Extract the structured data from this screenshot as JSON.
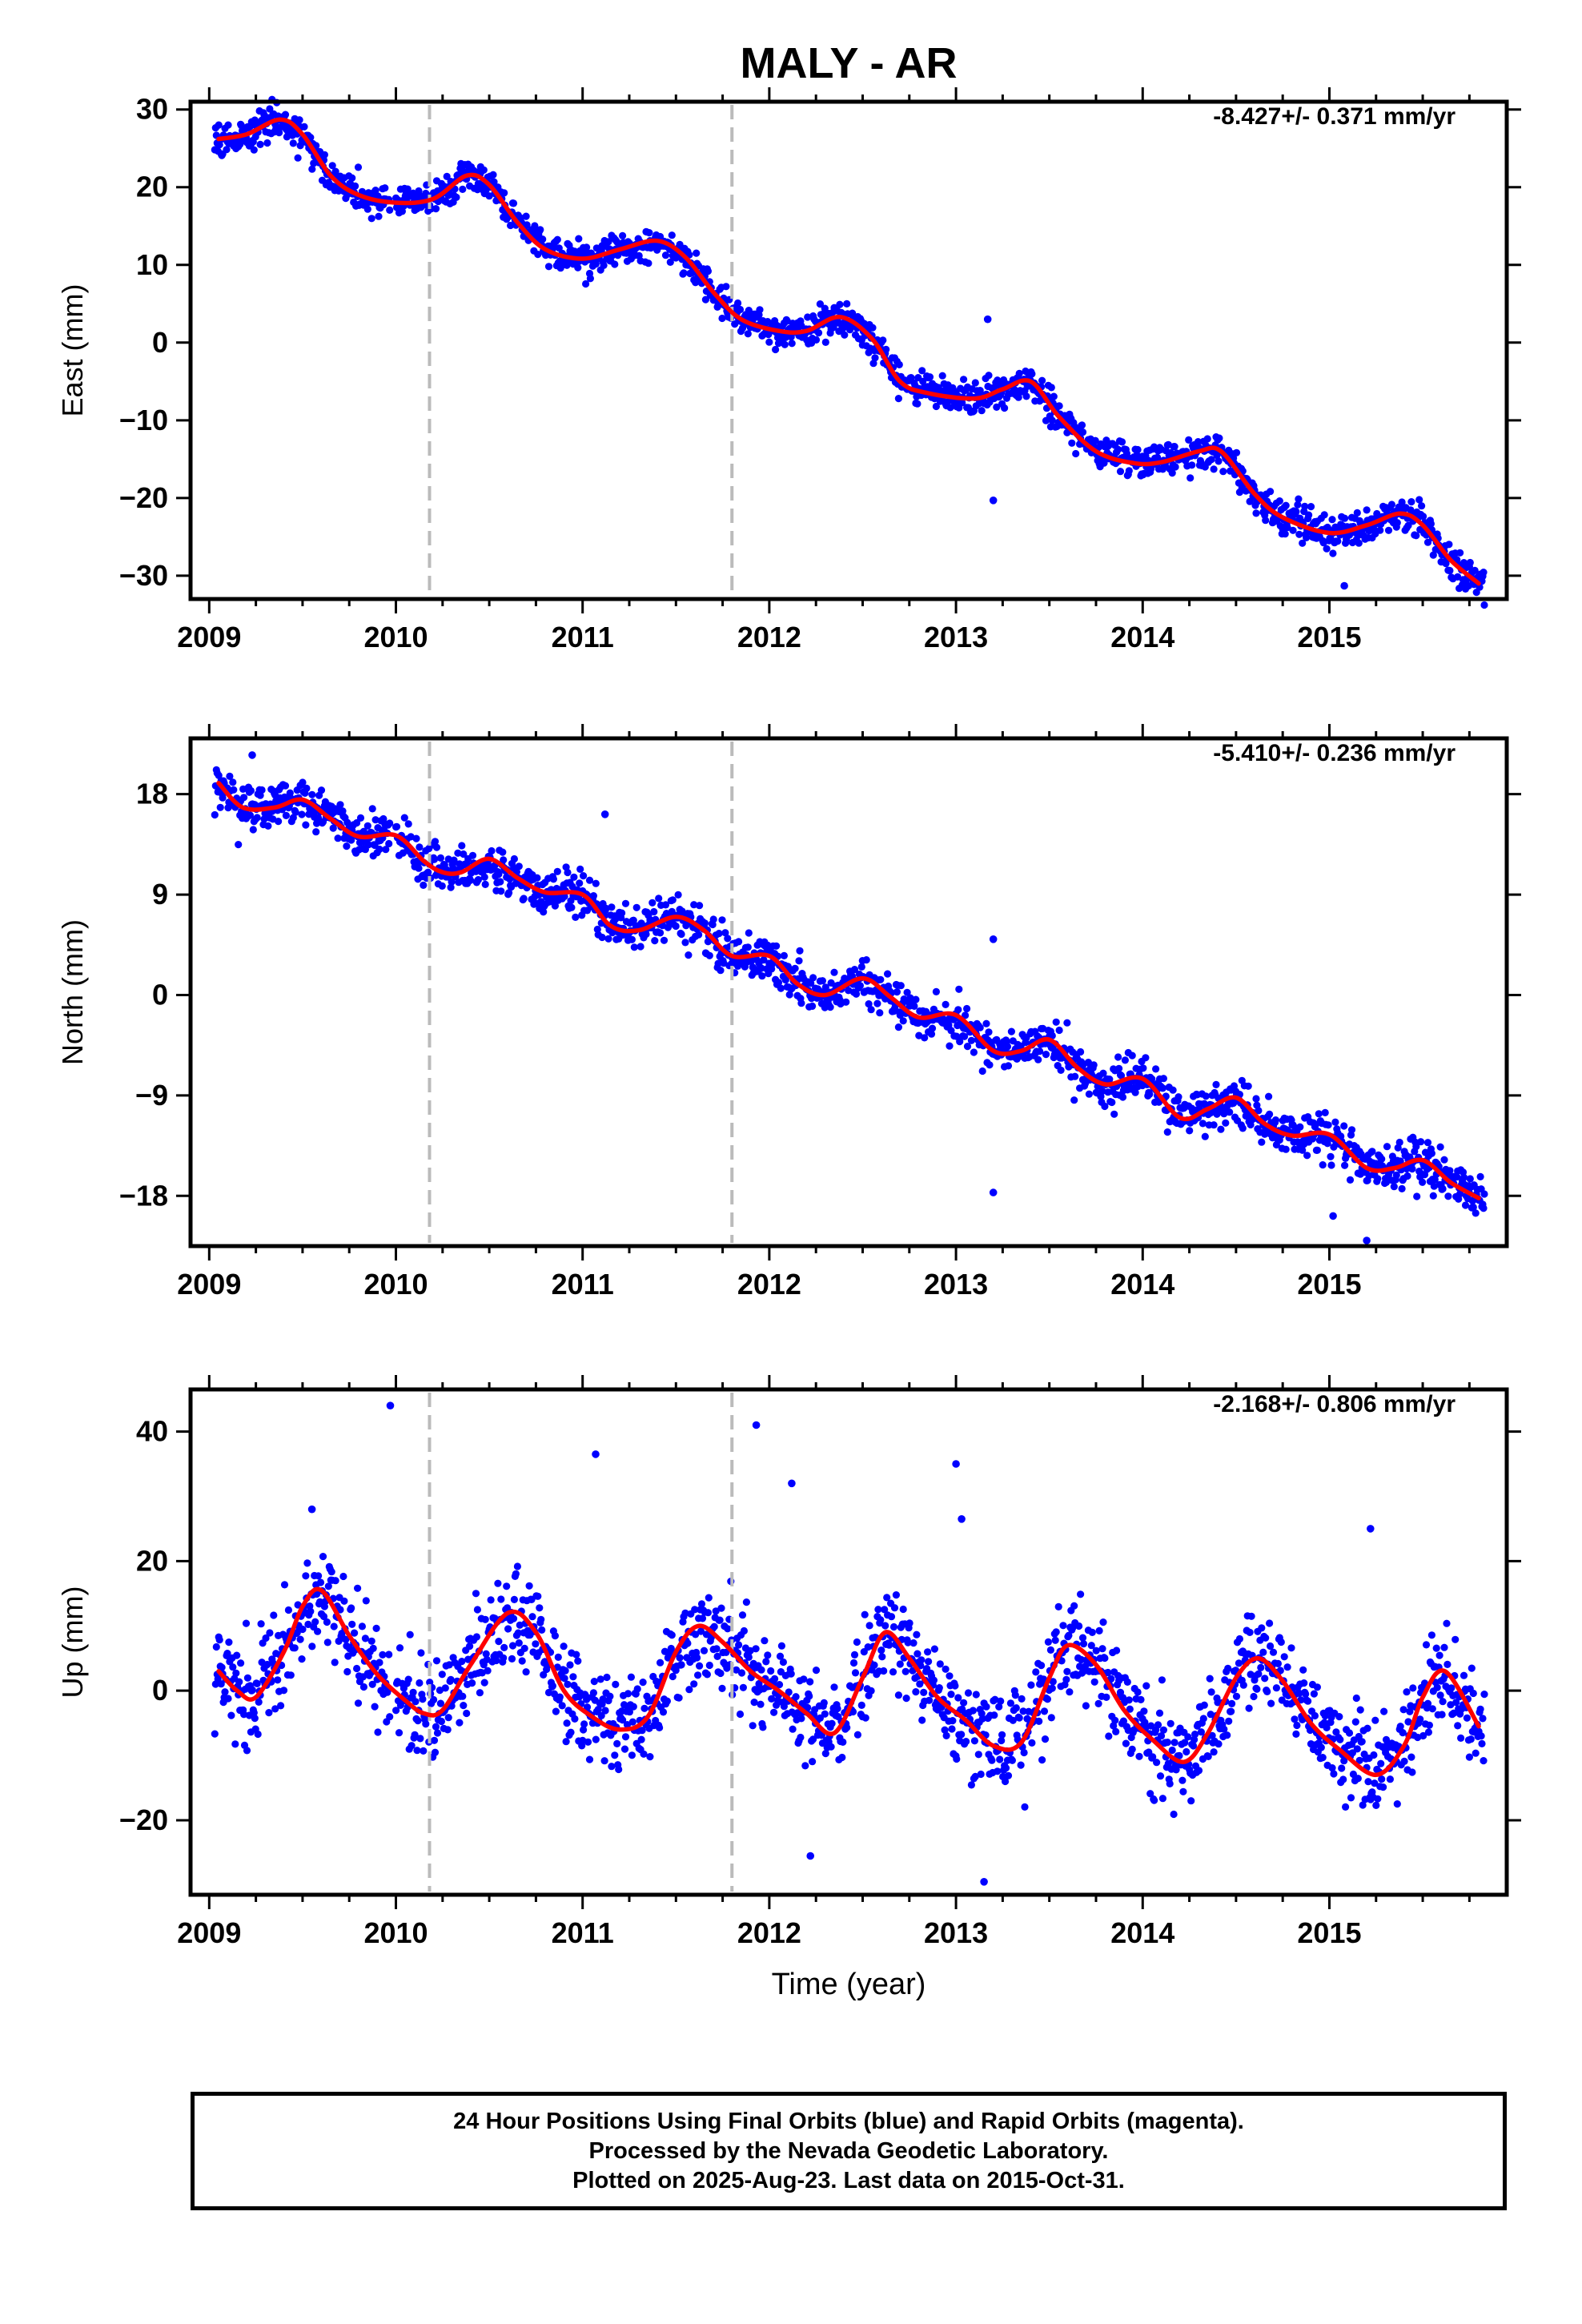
{
  "title": "MALY - AR",
  "xlabel": "Time (year)",
  "footer": [
    "24 Hour Positions Using Final Orbits (blue) and Rapid Orbits (magenta).",
    "Processed by the Nevada Geodetic Laboratory.",
    "Plotted on 2025-Aug-23. Last data on 2015-Oct-31."
  ],
  "colors": {
    "data": "#0000ff",
    "model": "#ff0000",
    "breaks": "#bbbbbb",
    "axis": "#000000"
  },
  "chart_data": [
    {
      "type": "scatter",
      "component": "East",
      "ylabel": "East (mm)",
      "rate": "-8.427+/- 0.371 mm/yr",
      "xlim": [
        2008.9,
        2015.95
      ],
      "ylim": [
        -33,
        31
      ],
      "xticks": [
        2009,
        2010,
        2011,
        2012,
        2013,
        2014,
        2015
      ],
      "yticks": [
        30,
        20,
        10,
        0,
        -10,
        -20,
        -30
      ],
      "ytick_labels": [
        "30",
        "20",
        "10",
        "0",
        "−10",
        "−20",
        "−30"
      ],
      "break_lines": [
        2010.18,
        2011.8
      ],
      "model_x": [
        2009.05,
        2009.2,
        2009.38,
        2009.5,
        2009.65,
        2009.8,
        2010.0,
        2010.2,
        2010.38,
        2010.5,
        2010.65,
        2010.8,
        2011.0,
        2011.2,
        2011.4,
        2011.55,
        2011.7,
        2011.85,
        2012.05,
        2012.2,
        2012.38,
        2012.55,
        2012.7,
        2012.85,
        2013.1,
        2013.25,
        2013.4,
        2013.55,
        2013.75,
        2013.95,
        2014.1,
        2014.3,
        2014.42,
        2014.6,
        2014.75,
        2015.0,
        2015.2,
        2015.38,
        2015.5,
        2015.65,
        2015.8
      ],
      "model_y": [
        26.2,
        26.8,
        28.7,
        26.8,
        21.5,
        19,
        18,
        18.5,
        21.5,
        20.3,
        15.5,
        12,
        10.8,
        12,
        13.1,
        11,
        6.5,
        3,
        1.5,
        1.5,
        3.3,
        0.5,
        -5,
        -6.5,
        -7.2,
        -6,
        -5,
        -9.5,
        -14,
        -15.5,
        -15.4,
        -14,
        -14,
        -19.5,
        -22.5,
        -24.5,
        -23.5,
        -22,
        -23.5,
        -28,
        -31
      ]
    },
    {
      "type": "scatter",
      "component": "North",
      "ylabel": "North (mm)",
      "rate": "-5.410+/- 0.236 mm/yr",
      "xlim": [
        2008.9,
        2015.95
      ],
      "ylim": [
        -22.5,
        23
      ],
      "xticks": [
        2009,
        2010,
        2011,
        2012,
        2013,
        2014,
        2015
      ],
      "yticks": [
        18,
        9,
        0,
        -9,
        -18
      ],
      "ytick_labels": [
        "18",
        "9",
        "0",
        "−9",
        "−18"
      ],
      "break_lines": [
        2010.18,
        2011.8
      ],
      "model_x": [
        2009.05,
        2009.18,
        2009.35,
        2009.5,
        2009.65,
        2009.8,
        2010.0,
        2010.15,
        2010.25,
        2010.35,
        2010.5,
        2010.65,
        2010.8,
        2011.0,
        2011.15,
        2011.3,
        2011.5,
        2011.65,
        2011.8,
        2012.0,
        2012.15,
        2012.3,
        2012.5,
        2012.65,
        2012.8,
        2013.0,
        2013.2,
        2013.35,
        2013.5,
        2013.65,
        2013.8,
        2014.0,
        2014.2,
        2014.35,
        2014.5,
        2014.65,
        2014.8,
        2015.0,
        2015.2,
        2015.35,
        2015.5,
        2015.65,
        2015.8
      ],
      "model_y": [
        19,
        16.8,
        16.8,
        17.5,
        15.8,
        14.2,
        14.3,
        12,
        11,
        11,
        12.2,
        10.5,
        9.2,
        9,
        6.2,
        5.8,
        7,
        5.8,
        3.5,
        3.5,
        1,
        0,
        1.5,
        -0.2,
        -2,
        -1.8,
        -5,
        -5,
        -4,
        -6.5,
        -8,
        -7.5,
        -11,
        -10.2,
        -9.2,
        -11.5,
        -12.6,
        -12.5,
        -15.5,
        -15.5,
        -14.8,
        -16.8,
        -18.2
      ]
    },
    {
      "type": "scatter",
      "component": "Up",
      "ylabel": "Up (mm)",
      "rate": "-2.168+/- 0.806 mm/yr",
      "xlim": [
        2008.9,
        2015.95
      ],
      "ylim": [
        -31.5,
        46.5
      ],
      "xticks": [
        2009,
        2010,
        2011,
        2012,
        2013,
        2014,
        2015
      ],
      "yticks": [
        40,
        20,
        0,
        -20
      ],
      "ytick_labels": [
        "40",
        "20",
        "0",
        "−20"
      ],
      "break_lines": [
        2010.18,
        2011.8
      ],
      "model_x": [
        2009.05,
        2009.15,
        2009.25,
        2009.4,
        2009.5,
        2009.6,
        2009.75,
        2009.9,
        2010.05,
        2010.15,
        2010.25,
        2010.4,
        2010.6,
        2010.75,
        2010.9,
        2011.05,
        2011.2,
        2011.35,
        2011.5,
        2011.62,
        2011.75,
        2011.9,
        2012.05,
        2012.2,
        2012.35,
        2012.5,
        2012.62,
        2012.75,
        2012.9,
        2013.05,
        2013.2,
        2013.35,
        2013.5,
        2013.6,
        2013.75,
        2013.9,
        2014.05,
        2014.22,
        2014.35,
        2014.5,
        2014.62,
        2014.75,
        2014.9,
        2015.05,
        2015.25,
        2015.4,
        2015.5,
        2015.62,
        2015.8
      ],
      "model_y": [
        3,
        0,
        -1,
        6,
        13,
        15.5,
        8.5,
        2.5,
        -1.5,
        -3.5,
        -3,
        4,
        12,
        9,
        0,
        -4,
        -6,
        -4,
        6,
        10,
        7.5,
        3,
        0,
        -3.5,
        -6.5,
        2,
        9,
        5,
        -1,
        -4.5,
        -8.5,
        -8,
        2,
        7,
        4,
        -3,
        -7.5,
        -11,
        -6.5,
        2,
        5,
        1.5,
        -5,
        -9,
        -13,
        -8.5,
        -1,
        3,
        -5.5
      ]
    }
  ]
}
